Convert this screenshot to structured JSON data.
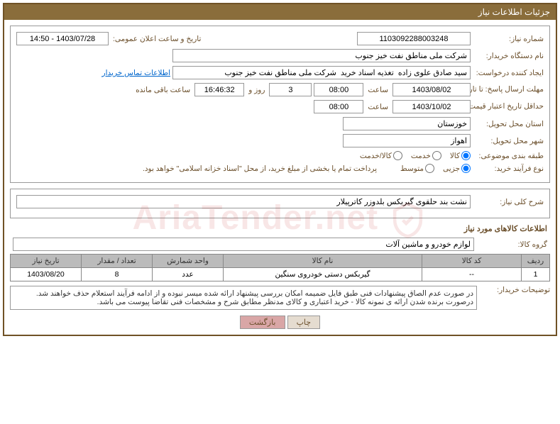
{
  "title_bar": "جزئیات اطلاعات نیاز",
  "row1": {
    "need_no_label": "شماره نیاز:",
    "need_no": "1103092288003248",
    "announce_label": "تاریخ و ساعت اعلان عمومی:",
    "announce_value": "1403/07/28 - 14:50"
  },
  "row2": {
    "buyer_org_label": "نام دستگاه خریدار:",
    "buyer_org": "شرکت ملی مناطق نفت خیز جنوب"
  },
  "row3": {
    "creator_label": "ایجاد کننده درخواست:",
    "creator": "سید صادق علوی زاده  تغذیه اسناد خرید  شرکت ملی مناطق نفت خیز جنوب",
    "contact_link": "اطلاعات تماس خریدار"
  },
  "row4": {
    "deadline_label": "مهلت ارسال پاسخ: تا تاریخ:",
    "deadline_date": "1403/08/02",
    "time_label": "ساعت",
    "deadline_time": "08:00",
    "days": "3",
    "days_and_label": "روز و",
    "countdown": "16:46:32",
    "remain_label": "ساعت باقی مانده"
  },
  "row5": {
    "validity_label": "حداقل تاریخ اعتبار قیمت: تا تاریخ:",
    "validity_date": "1403/10/02",
    "time_label": "ساعت",
    "validity_time": "08:00"
  },
  "row6": {
    "province_label": "استان محل تحویل:",
    "province": "خوزستان"
  },
  "row7": {
    "city_label": "شهر محل تحویل:",
    "city": "اهواز"
  },
  "row8": {
    "class_label": "طبقه بندی موضوعی:",
    "opt_goods": "کالا",
    "opt_service": "خدمت",
    "opt_both": "کالا/خدمت"
  },
  "row9": {
    "process_label": "نوع فرآیند خرید:",
    "opt_small": "جزیی",
    "opt_medium": "متوسط",
    "note": "پرداخت تمام یا بخشی از مبلغ خرید، از محل \"اسناد خزانه اسلامی\" خواهد بود."
  },
  "desc": {
    "label": "شرح کلی نیاز:",
    "value": "نشت بند حلقوی گیربکس بلدوزر کاترپیلار"
  },
  "goods_section_title": "اطلاعات کالاهای مورد نیاز",
  "goods_group": {
    "label": "گروه کالا:",
    "value": "لوازم خودرو و ماشین آلات"
  },
  "table": {
    "headers": [
      "ردیف",
      "کد کالا",
      "نام کالا",
      "واحد شمارش",
      "تعداد / مقدار",
      "تاریخ نیاز"
    ],
    "rows": [
      [
        "1",
        "--",
        "گیربکس دستی خودروی سنگین",
        "عدد",
        "8",
        "1403/08/20"
      ]
    ],
    "col_widths": [
      "40px",
      "140px",
      "auto",
      "100px",
      "100px",
      "100px"
    ]
  },
  "buyer_notes": {
    "label": "توضیحات خریدار:",
    "line1": "در صورت عدم الصاق پیشنهادات فنی طبق فایل ضمیمه امکان بررسی پیشنهاد ارائه شده میسر نبوده و از ادامه فرآیند استعلام حذف خواهند شد.",
    "line2": "درصورت برنده شدن ارائه ی نمونه کالا - خرید اعتباری و کالای مدنظر مطابق شرح و مشخصات فنی تقاضا پیوست می باشد."
  },
  "buttons": {
    "print": "چاپ",
    "back": "بازگشت"
  },
  "watermark_text": "AriaTender.net",
  "colors": {
    "title_bg": "#8a6d3b",
    "border": "#705226",
    "label": "#6b4f2b"
  }
}
